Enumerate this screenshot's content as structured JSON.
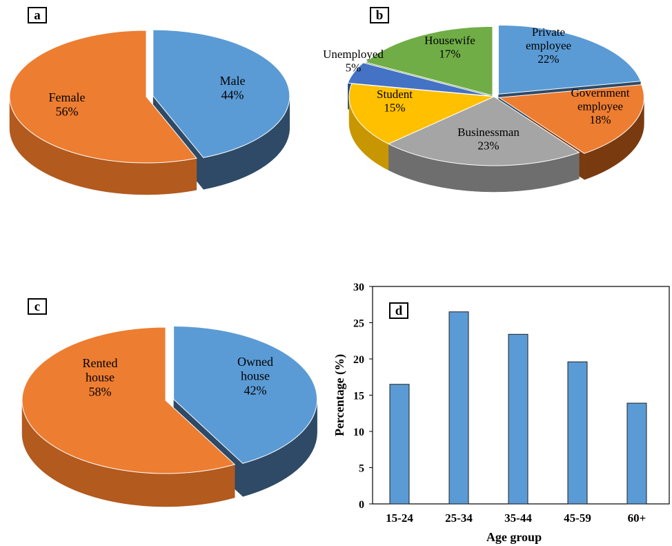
{
  "panels": {
    "a": {
      "label": "a"
    },
    "b": {
      "label": "b"
    },
    "c": {
      "label": "c"
    },
    "d": {
      "label": "d"
    }
  },
  "chart_data": [
    {
      "type": "pie",
      "id": "a",
      "title": "",
      "slices": [
        {
          "name": "Male",
          "value": 44,
          "label": "44%",
          "color": "#5B9BD5",
          "side_color": "#2E4A66"
        },
        {
          "name": "Female",
          "value": 56,
          "label": "56%",
          "color": "#ED7D31",
          "side_color": "#B35A1E"
        }
      ]
    },
    {
      "type": "pie",
      "id": "b",
      "title": "",
      "slices": [
        {
          "name": "Private employee",
          "value": 22,
          "label": "22%",
          "color": "#5B9BD5",
          "side_color": "#2E4A66"
        },
        {
          "name": "Government employee",
          "value": 18,
          "label": "18%",
          "color": "#ED7D31",
          "side_color": "#7A3A10"
        },
        {
          "name": "Businessman",
          "value": 23,
          "label": "23%",
          "color": "#A5A5A5",
          "side_color": "#6E6E6E"
        },
        {
          "name": "Student",
          "value": 15,
          "label": "15%",
          "color": "#FFC000",
          "side_color": "#C89600"
        },
        {
          "name": "Unemployed",
          "value": 5,
          "label": "5%",
          "color": "#4472C4",
          "side_color": "#2A4A80"
        },
        {
          "name": "Housewife",
          "value": 17,
          "label": "17%",
          "color": "#70AD47",
          "side_color": "#4A7A2E"
        }
      ]
    },
    {
      "type": "pie",
      "id": "c",
      "title": "",
      "slices": [
        {
          "name": "Owned house",
          "value": 42,
          "label": "42%",
          "color": "#5B9BD5",
          "side_color": "#2E4A66"
        },
        {
          "name": "Rented house",
          "value": 58,
          "label": "58%",
          "color": "#ED7D31",
          "side_color": "#B35A1E"
        }
      ]
    },
    {
      "type": "bar",
      "id": "d",
      "title": "",
      "categories": [
        "15-24",
        "25-34",
        "35-44",
        "45-59",
        "60+"
      ],
      "values": [
        16.5,
        26.5,
        23.4,
        19.6,
        13.9
      ],
      "xlabel": "Age group",
      "ylabel": "Percentage (%)",
      "ylim": [
        0,
        30
      ],
      "yticks": [
        "0",
        "5",
        "10",
        "15",
        "20",
        "25",
        "30"
      ],
      "bar_color": "#5B9BD5",
      "grid": false
    }
  ]
}
